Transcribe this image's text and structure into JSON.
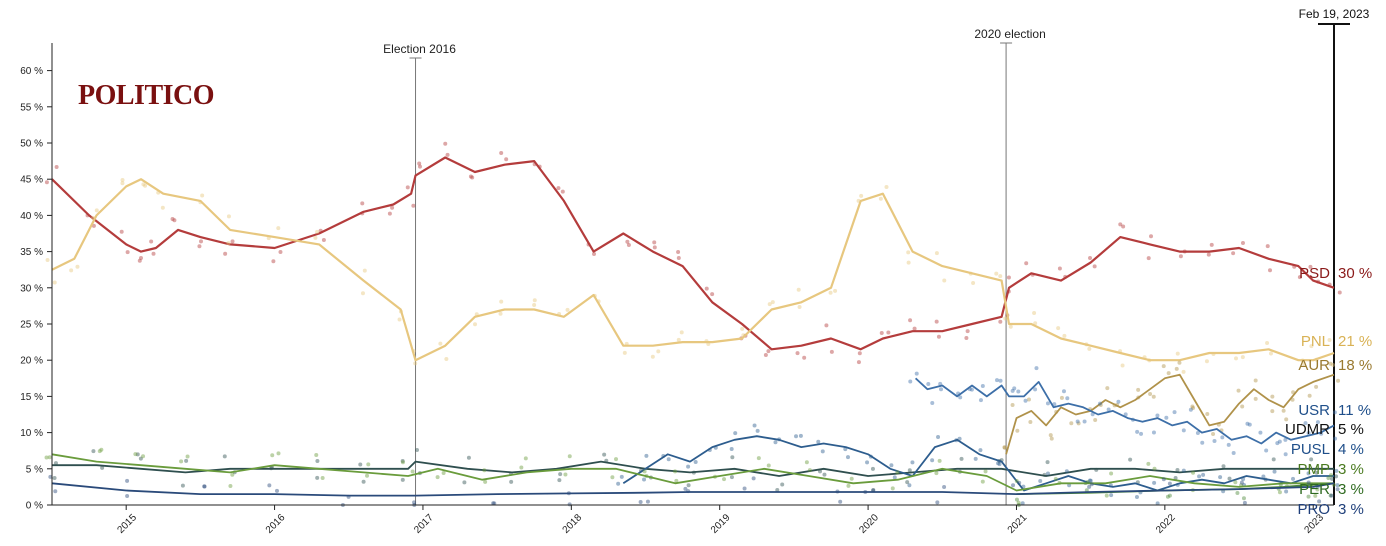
{
  "brand": "POLITICO",
  "colors": {
    "PSD": "#b43c3c",
    "PNL": "#e7c77f",
    "AUR": "#b0924a",
    "USR": "#3d6fa8",
    "UDMR": "#2f4f4f",
    "PUSL": "#2d5d8e",
    "PMP": "#6a9c3c",
    "PER": "#4e8a3a",
    "PRO": "#2a4a7a",
    "axis": "#222222"
  },
  "chart_data": {
    "type": "line",
    "title": "",
    "xlabel": "",
    "ylabel": "",
    "ylim": [
      0,
      62
    ],
    "xlim": [
      2014.5,
      2023.14
    ],
    "yticks": [
      0,
      5,
      10,
      15,
      20,
      25,
      30,
      35,
      40,
      45,
      50,
      55,
      60
    ],
    "ytick_labels": [
      "0 %",
      "5 %",
      "10 %",
      "15 %",
      "20 %",
      "25 %",
      "30 %",
      "35 %",
      "40 %",
      "45 %",
      "50 %",
      "55 %",
      "60 %"
    ],
    "xticks": [
      2015,
      2016,
      2017,
      2018,
      2019,
      2020,
      2021,
      2022,
      2023
    ],
    "xtick_labels": [
      "2015",
      "2016",
      "2017",
      "2018",
      "2019",
      "2020",
      "2021",
      "2022",
      "2023"
    ],
    "events": [
      {
        "label": "Election 2016",
        "x": 2016.95
      },
      {
        "label": "2020 election",
        "x": 2020.93
      }
    ],
    "current_date_label": "Feb 19, 2023",
    "series": [
      {
        "name": "PSD",
        "end_label": "30 %",
        "x": [
          2014.5,
          2014.75,
          2015.0,
          2015.1,
          2015.2,
          2015.35,
          2015.5,
          2015.7,
          2016.0,
          2016.3,
          2016.6,
          2016.8,
          2016.92,
          2016.95,
          2017.15,
          2017.35,
          2017.55,
          2017.75,
          2017.95,
          2018.15,
          2018.35,
          2018.55,
          2018.75,
          2018.95,
          2019.15,
          2019.35,
          2019.55,
          2019.75,
          2019.95,
          2020.1,
          2020.3,
          2020.5,
          2020.7,
          2020.9,
          2020.95,
          2021.1,
          2021.3,
          2021.5,
          2021.7,
          2021.9,
          2022.1,
          2022.3,
          2022.5,
          2022.7,
          2022.9,
          2023.0,
          2023.14
        ],
        "values": [
          45,
          40,
          36,
          35,
          35.5,
          38,
          37,
          36,
          35.5,
          37.5,
          40.5,
          41.5,
          43,
          45.5,
          48,
          46,
          47,
          47.5,
          42,
          35,
          37.5,
          35,
          33,
          28,
          25,
          21.5,
          22,
          23,
          21.5,
          23,
          24,
          24,
          25,
          26,
          30,
          32,
          31,
          33.5,
          37,
          36,
          35,
          35,
          35.5,
          34,
          33,
          31,
          30
        ]
      },
      {
        "name": "PNL",
        "end_label": "21 %",
        "x": [
          2014.5,
          2014.65,
          2014.8,
          2015.0,
          2015.1,
          2015.25,
          2015.5,
          2015.7,
          2016.0,
          2016.3,
          2016.6,
          2016.85,
          2016.95,
          2017.15,
          2017.35,
          2017.55,
          2017.75,
          2017.95,
          2018.15,
          2018.35,
          2018.55,
          2018.75,
          2018.95,
          2019.15,
          2019.35,
          2019.55,
          2019.75,
          2019.95,
          2020.1,
          2020.3,
          2020.5,
          2020.7,
          2020.9,
          2020.95,
          2021.1,
          2021.3,
          2021.5,
          2021.7,
          2021.9,
          2022.1,
          2022.3,
          2022.5,
          2022.7,
          2022.9,
          2023.0,
          2023.14
        ],
        "values": [
          32.5,
          34,
          40,
          44,
          45,
          43,
          42,
          38,
          37,
          36,
          31,
          27,
          20,
          22,
          26,
          27,
          27,
          26,
          29,
          22,
          22,
          22.5,
          22.5,
          23,
          27,
          28,
          30,
          42,
          43,
          35,
          33,
          32,
          31,
          25,
          25,
          23,
          22,
          21,
          20,
          20,
          21,
          21,
          21.5,
          20,
          20,
          21
        ]
      },
      {
        "name": "AUR",
        "end_label": "18 %",
        "x": [
          2020.93,
          2021.0,
          2021.1,
          2021.2,
          2021.3,
          2021.4,
          2021.5,
          2021.6,
          2021.7,
          2021.8,
          2021.9,
          2022.0,
          2022.1,
          2022.2,
          2022.3,
          2022.4,
          2022.5,
          2022.6,
          2022.7,
          2022.8,
          2022.9,
          2023.0,
          2023.14
        ],
        "values": [
          7,
          12,
          13,
          11,
          13.5,
          12.5,
          13,
          14.5,
          13.5,
          14.5,
          16,
          17.5,
          18,
          14.5,
          11,
          11.5,
          14,
          16,
          14.5,
          13.5,
          16,
          17,
          18
        ]
      },
      {
        "name": "USR",
        "end_label": "11 %",
        "x": [
          2020.32,
          2020.4,
          2020.5,
          2020.6,
          2020.7,
          2020.8,
          2020.9,
          2020.95,
          2021.05,
          2021.15,
          2021.25,
          2021.35,
          2021.45,
          2021.55,
          2021.65,
          2021.75,
          2021.85,
          2021.95,
          2022.05,
          2022.15,
          2022.25,
          2022.35,
          2022.45,
          2022.55,
          2022.65,
          2022.75,
          2022.85,
          2022.95,
          2023.05,
          2023.14
        ],
        "values": [
          17.5,
          16,
          16.5,
          15,
          16.5,
          15,
          16.5,
          15,
          15,
          17,
          13.5,
          14,
          13.5,
          12.5,
          13,
          12,
          11.5,
          12,
          11,
          11.5,
          10,
          10.5,
          9,
          9.5,
          8.5,
          10,
          9,
          9.5,
          10,
          11
        ]
      },
      {
        "name": "UDMR",
        "end_label": "5 %",
        "x": [
          2014.5,
          2014.8,
          2015.1,
          2015.4,
          2015.7,
          2016.0,
          2016.3,
          2016.6,
          2016.9,
          2016.95,
          2017.3,
          2017.6,
          2017.9,
          2018.2,
          2018.5,
          2018.8,
          2019.1,
          2019.4,
          2019.7,
          2020.0,
          2020.3,
          2020.6,
          2020.9,
          2021.2,
          2021.5,
          2021.8,
          2022.1,
          2022.4,
          2022.7,
          2023.0,
          2023.14
        ],
        "values": [
          5.5,
          5.5,
          5,
          4.5,
          5,
          5,
          5,
          5,
          5,
          6,
          5,
          4.5,
          5,
          6,
          5,
          4.5,
          5,
          4,
          5,
          4,
          4.5,
          5,
          5,
          4,
          5,
          5,
          4.5,
          5,
          5,
          5,
          5
        ]
      },
      {
        "name": "PUSL",
        "end_label": "4 %",
        "x": [
          2018.35,
          2018.5,
          2018.65,
          2018.8,
          2018.95,
          2019.1,
          2019.25,
          2019.4,
          2019.55,
          2019.7,
          2019.85,
          2020.0,
          2020.15,
          2020.3,
          2020.45,
          2020.6,
          2020.75,
          2020.9,
          2021.05,
          2021.2,
          2021.35,
          2021.5,
          2021.65,
          2021.8,
          2021.95,
          2022.1,
          2022.25,
          2022.4,
          2022.55,
          2022.7,
          2022.85,
          2023.0,
          2023.14
        ],
        "values": [
          3,
          5,
          7,
          6,
          8,
          9,
          9.5,
          9,
          8,
          8.5,
          8,
          7,
          5,
          4,
          8,
          9,
          7,
          6,
          2,
          3,
          4,
          3,
          2.5,
          3,
          2,
          3,
          3.5,
          3,
          4,
          3.5,
          3,
          4,
          4
        ]
      },
      {
        "name": "PMP",
        "end_label": "3 %",
        "x": [
          2014.5,
          2014.8,
          2015.1,
          2015.4,
          2015.7,
          2016.0,
          2016.3,
          2016.6,
          2016.9,
          2017.1,
          2017.4,
          2017.7,
          2018.0,
          2018.3,
          2018.5,
          2018.7,
          2019.0,
          2019.3,
          2019.6,
          2019.9,
          2020.2,
          2020.5,
          2020.8,
          2021.0,
          2021.3,
          2021.6,
          2021.9,
          2022.2,
          2022.5,
          2022.8,
          2023.0,
          2023.14
        ],
        "values": [
          7,
          6,
          5.5,
          5,
          4.5,
          5.5,
          5,
          4.5,
          4,
          5,
          3.5,
          4.5,
          5,
          5,
          4,
          3,
          4,
          5,
          4,
          3,
          3.5,
          5,
          4,
          2,
          3,
          3,
          4,
          3,
          2.5,
          3,
          3,
          3
        ]
      },
      {
        "name": "PER",
        "end_label": "3 %",
        "x": [
          2021.0,
          2021.5,
          2022.0,
          2022.5,
          2022.8,
          2023.0,
          2023.14
        ],
        "values": [
          1.5,
          1.7,
          2,
          2.2,
          2.5,
          2.8,
          3
        ]
      },
      {
        "name": "PRO",
        "end_label": "3 %",
        "x": [
          2014.5,
          2015.0,
          2015.5,
          2016.0,
          2016.5,
          2016.95,
          2017.5,
          2018.0,
          2018.5,
          2018.8,
          2019.2,
          2019.8,
          2020.0,
          2020.5,
          2021.0,
          2021.5,
          2022.0,
          2022.5,
          2023.0,
          2023.14
        ],
        "values": [
          3,
          2,
          1.5,
          1.5,
          1.3,
          1.3,
          1.5,
          1.6,
          1.7,
          1.8,
          1.8,
          1.8,
          1.8,
          1.8,
          1.5,
          1.8,
          2,
          2.2,
          2.5,
          3
        ]
      }
    ]
  }
}
